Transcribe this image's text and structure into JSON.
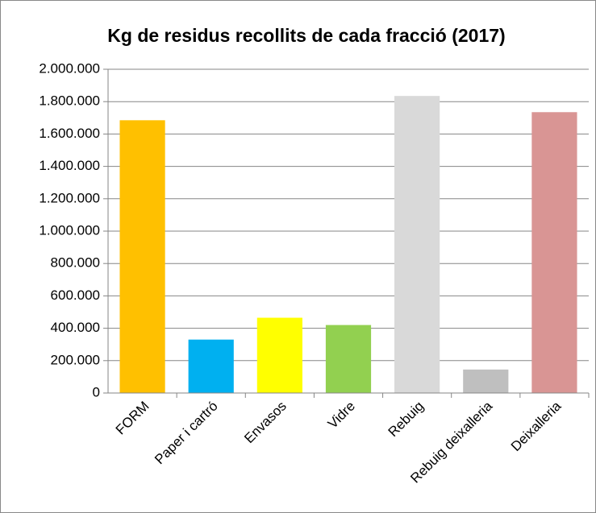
{
  "chart_data": {
    "type": "bar",
    "title": "Kg de residus recollits de cada fracció (2017)",
    "categories": [
      "FORM",
      "Paper i cartró",
      "Envasos",
      "Vidre",
      "Rebuig",
      "Rebuig deixalleria",
      "Deixalleria"
    ],
    "values": [
      1685000,
      330000,
      465000,
      420000,
      1835000,
      145000,
      1735000
    ],
    "colors": [
      "#ffc000",
      "#00b0f0",
      "#ffff00",
      "#92d050",
      "#d9d9d9",
      "#bfbfbf",
      "#d99594"
    ],
    "ylim": [
      0,
      2000000
    ],
    "yticks": [
      0,
      {
        "value": 200000,
        "label": "200.000"
      },
      {
        "value": 400000,
        "label": "400.000"
      },
      {
        "value": 600000,
        "label": "600.000"
      },
      {
        "value": 800000,
        "label": "800.000"
      },
      {
        "value": 1000000,
        "label": "1.000.000"
      },
      {
        "value": 1200000,
        "label": "1.200.000"
      },
      {
        "value": 1400000,
        "label": "1.400.000"
      },
      {
        "value": 1600000,
        "label": "1.600.000"
      },
      {
        "value": 1800000,
        "label": "1.800.000"
      },
      {
        "value": 2000000,
        "label": "2.000.000"
      }
    ],
    "grid": true
  }
}
